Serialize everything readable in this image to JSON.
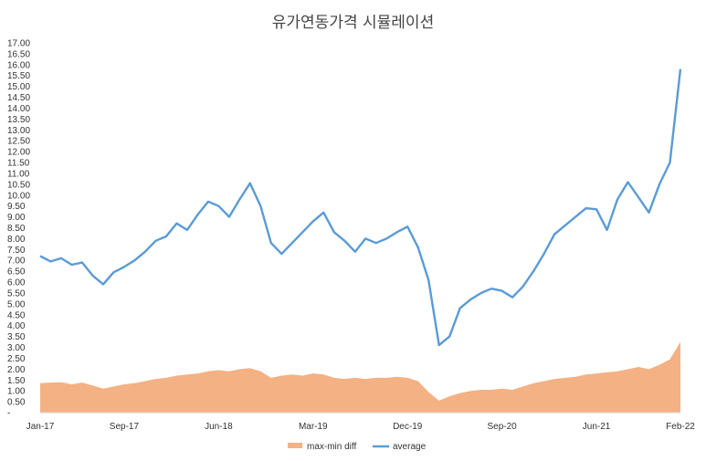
{
  "chart_data": {
    "type": "line",
    "title": "유가연동가격 시뮬레이션",
    "xlabel": "",
    "ylabel": "",
    "ylim": [
      0,
      17
    ],
    "grid": false,
    "legend_position": "bottom",
    "y_ticks": [
      "-",
      "0.50",
      "1.00",
      "1.50",
      "2.00",
      "2.50",
      "3.00",
      "3.50",
      "4.00",
      "4.50",
      "5.00",
      "5.50",
      "6.00",
      "6.50",
      "7.00",
      "7.50",
      "8.00",
      "8.50",
      "9.00",
      "9.50",
      "10.00",
      "10.50",
      "11.00",
      "11.50",
      "12.00",
      "12.50",
      "13.00",
      "13.50",
      "14.00",
      "14.50",
      "15.00",
      "15.50",
      "16.00",
      "16.50",
      "17.00"
    ],
    "x_ticks": [
      {
        "label": "Jan-17",
        "pos": 0
      },
      {
        "label": "Sep-17",
        "pos": 8
      },
      {
        "label": "Jun-18",
        "pos": 17
      },
      {
        "label": "Mar-19",
        "pos": 26
      },
      {
        "label": "Dec-19",
        "pos": 35
      },
      {
        "label": "Sep-20",
        "pos": 44
      },
      {
        "label": "Jun-21",
        "pos": 53
      },
      {
        "label": "Feb-22",
        "pos": 61
      }
    ],
    "x_range": [
      0,
      61
    ],
    "series": [
      {
        "name": "max-min diff",
        "type": "area",
        "color": "#f4b183",
        "points": [
          [
            0,
            1.35
          ],
          [
            1,
            1.38
          ],
          [
            2,
            1.4
          ],
          [
            3,
            1.3
          ],
          [
            4,
            1.38
          ],
          [
            5,
            1.25
          ],
          [
            6,
            1.1
          ],
          [
            7,
            1.2
          ],
          [
            8,
            1.3
          ],
          [
            9,
            1.35
          ],
          [
            10,
            1.45
          ],
          [
            11,
            1.55
          ],
          [
            12,
            1.6
          ],
          [
            13,
            1.7
          ],
          [
            14,
            1.75
          ],
          [
            15,
            1.8
          ],
          [
            16,
            1.9
          ],
          [
            17,
            1.95
          ],
          [
            18,
            1.9
          ],
          [
            19,
            2.0
          ],
          [
            20,
            2.05
          ],
          [
            21,
            1.9
          ],
          [
            22,
            1.6
          ],
          [
            23,
            1.7
          ],
          [
            24,
            1.75
          ],
          [
            25,
            1.7
          ],
          [
            26,
            1.8
          ],
          [
            27,
            1.75
          ],
          [
            28,
            1.6
          ],
          [
            29,
            1.55
          ],
          [
            30,
            1.6
          ],
          [
            31,
            1.55
          ],
          [
            32,
            1.6
          ],
          [
            33,
            1.6
          ],
          [
            34,
            1.65
          ],
          [
            35,
            1.6
          ],
          [
            36,
            1.45
          ],
          [
            37,
            0.95
          ],
          [
            38,
            0.55
          ],
          [
            39,
            0.75
          ],
          [
            40,
            0.9
          ],
          [
            41,
            1.0
          ],
          [
            42,
            1.05
          ],
          [
            43,
            1.05
          ],
          [
            44,
            1.1
          ],
          [
            45,
            1.05
          ],
          [
            46,
            1.2
          ],
          [
            47,
            1.35
          ],
          [
            48,
            1.45
          ],
          [
            49,
            1.55
          ],
          [
            50,
            1.6
          ],
          [
            51,
            1.65
          ],
          [
            52,
            1.75
          ],
          [
            53,
            1.8
          ],
          [
            54,
            1.85
          ],
          [
            55,
            1.9
          ],
          [
            56,
            2.0
          ],
          [
            57,
            2.1
          ],
          [
            58,
            2.0
          ],
          [
            59,
            2.2
          ],
          [
            60,
            2.45
          ],
          [
            61,
            3.25
          ]
        ]
      },
      {
        "name": "average",
        "type": "line",
        "color": "#5b9bd5",
        "points": [
          [
            0,
            7.2
          ],
          [
            1,
            6.95
          ],
          [
            2,
            7.1
          ],
          [
            3,
            6.8
          ],
          [
            4,
            6.9
          ],
          [
            5,
            6.3
          ],
          [
            6,
            5.9
          ],
          [
            7,
            6.45
          ],
          [
            8,
            6.7
          ],
          [
            9,
            7.0
          ],
          [
            10,
            7.4
          ],
          [
            11,
            7.9
          ],
          [
            12,
            8.1
          ],
          [
            13,
            8.7
          ],
          [
            14,
            8.4
          ],
          [
            15,
            9.1
          ],
          [
            16,
            9.7
          ],
          [
            17,
            9.5
          ],
          [
            18,
            9.0
          ],
          [
            19,
            9.8
          ],
          [
            20,
            10.55
          ],
          [
            21,
            9.5
          ],
          [
            22,
            7.8
          ],
          [
            23,
            7.3
          ],
          [
            24,
            7.8
          ],
          [
            25,
            8.3
          ],
          [
            26,
            8.8
          ],
          [
            27,
            9.2
          ],
          [
            28,
            8.3
          ],
          [
            29,
            7.9
          ],
          [
            30,
            7.4
          ],
          [
            31,
            8.0
          ],
          [
            32,
            7.8
          ],
          [
            33,
            8.0
          ],
          [
            34,
            8.3
          ],
          [
            35,
            8.55
          ],
          [
            36,
            7.6
          ],
          [
            37,
            6.1
          ],
          [
            38,
            3.1
          ],
          [
            39,
            3.5
          ],
          [
            40,
            4.8
          ],
          [
            41,
            5.2
          ],
          [
            42,
            5.5
          ],
          [
            43,
            5.7
          ],
          [
            44,
            5.6
          ],
          [
            45,
            5.3
          ],
          [
            46,
            5.8
          ],
          [
            47,
            6.5
          ],
          [
            48,
            7.3
          ],
          [
            49,
            8.2
          ],
          [
            50,
            8.6
          ],
          [
            51,
            9.0
          ],
          [
            52,
            9.4
          ],
          [
            53,
            9.35
          ],
          [
            54,
            8.4
          ],
          [
            55,
            9.8
          ],
          [
            56,
            10.6
          ],
          [
            57,
            9.9
          ],
          [
            58,
            9.2
          ],
          [
            59,
            10.5
          ],
          [
            60,
            11.5
          ],
          [
            61,
            15.8
          ]
        ]
      }
    ]
  }
}
